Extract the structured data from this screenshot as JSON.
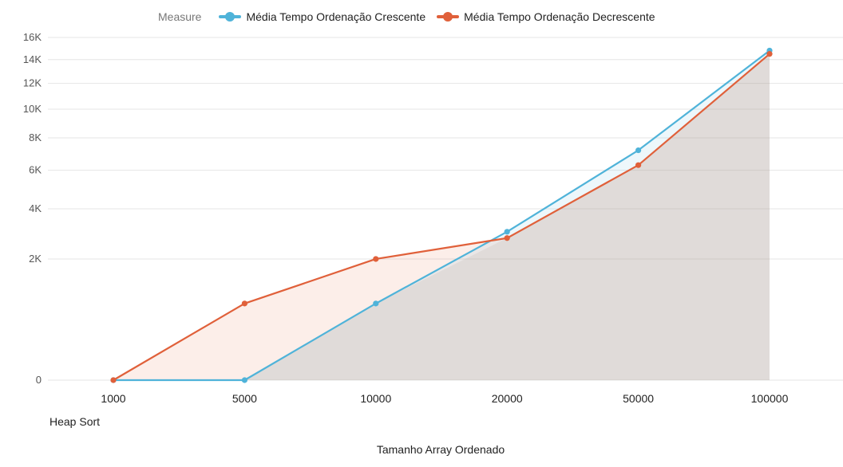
{
  "legend": {
    "title": "Measure",
    "items": [
      {
        "label": "Média Tempo Ordenação Crescente",
        "color": "#4fb3d9"
      },
      {
        "label": "Média Tempo Ordenação Decrescente",
        "color": "#e0603a"
      }
    ]
  },
  "subtitle": "Heap Sort",
  "chart_data": {
    "type": "area",
    "title": "",
    "subtitle": "Heap Sort",
    "xlabel": "Tamanho Array Ordenado",
    "ylabel": "",
    "yscale": "sqrt",
    "ylim": [
      0,
      16000
    ],
    "categories": [
      "1000",
      "5000",
      "10000",
      "20000",
      "50000",
      "100000"
    ],
    "yticks": [
      0,
      2000,
      4000,
      6000,
      8000,
      10000,
      12000,
      14000,
      16000
    ],
    "ytick_labels": [
      "0",
      "2K",
      "4K",
      "6K",
      "8K",
      "10K",
      "12K",
      "14K",
      "16K"
    ],
    "series": [
      {
        "name": "Média Tempo Ordenação Crescente",
        "color": "#4fb3d9",
        "values": [
          0,
          0,
          800,
          3000,
          7200,
          14800
        ]
      },
      {
        "name": "Média Tempo Ordenação Decrescente",
        "color": "#e0603a",
        "values": [
          0,
          800,
          2000,
          2750,
          6300,
          14500
        ]
      }
    ]
  }
}
